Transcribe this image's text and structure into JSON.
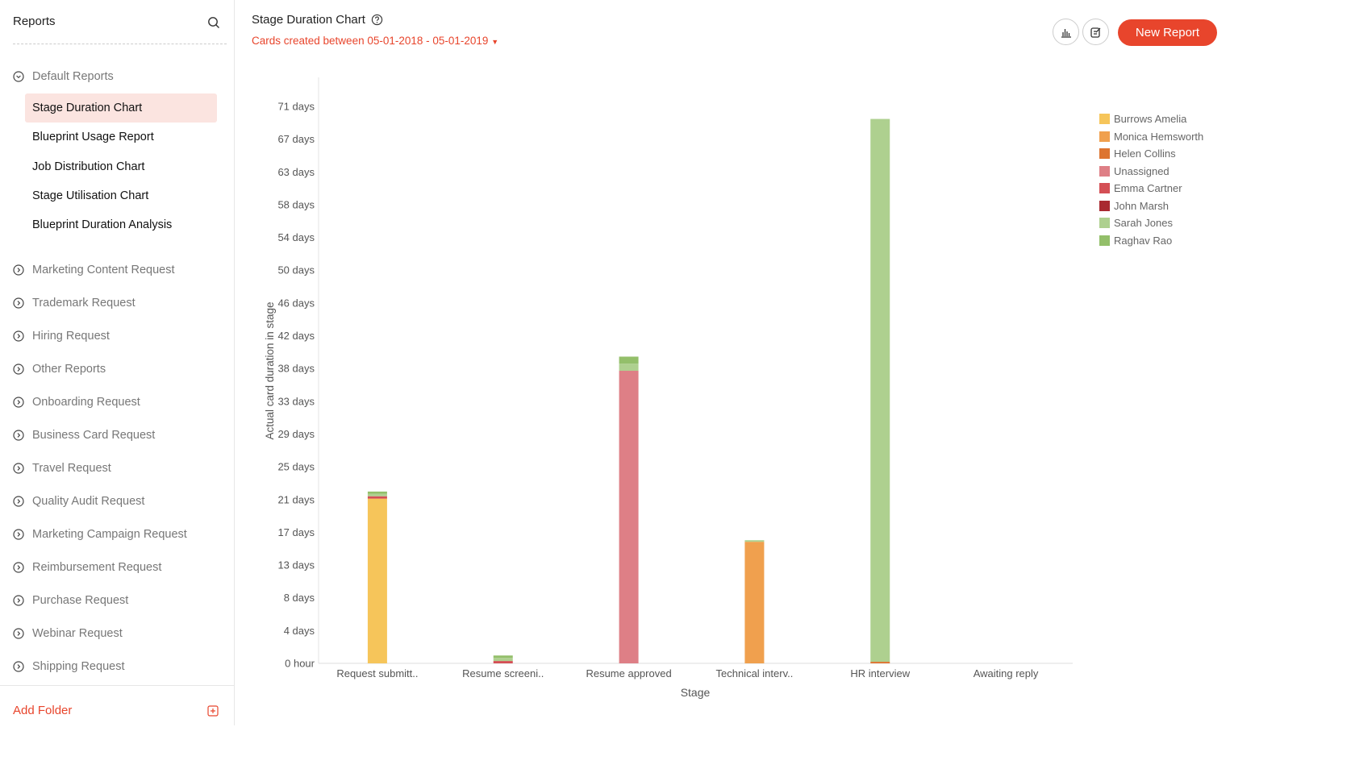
{
  "sidebar": {
    "title": "Reports",
    "default_folder": "Default Reports",
    "default_reports": [
      "Stage Duration Chart",
      "Blueprint Usage Report",
      "Job Distribution Chart",
      "Stage Utilisation Chart",
      "Blueprint Duration Analysis"
    ],
    "folders": [
      "Marketing Content Request",
      "Trademark Request",
      "Hiring Request",
      "Other Reports",
      "Onboarding Request",
      "Business Card Request",
      "Travel Request",
      "Quality Audit Request",
      "Marketing Campaign Request",
      "Reimbursement Request",
      "Purchase Request",
      "Webinar Request",
      "Shipping Request"
    ],
    "add_folder": "Add Folder"
  },
  "header": {
    "title": "Stage Duration Chart",
    "date_filter": "Cards created between 05-01-2018 - 05-01-2019",
    "new_report": "New Report"
  },
  "chart_data": {
    "type": "bar",
    "stacked": true,
    "xlabel": "Stage",
    "ylabel": "Actual card duration in stage",
    "ylim": [
      0,
      71
    ],
    "y_ticks": [
      0,
      4.18,
      8.35,
      12.53,
      16.71,
      20.88,
      25.06,
      29.24,
      33.41,
      37.59,
      41.76,
      45.94,
      50.12,
      54.29,
      58.47,
      62.65,
      66.82,
      71
    ],
    "y_tick_labels": [
      "0 hour",
      "4 days",
      "8 days",
      "13 days",
      "17 days",
      "21 days",
      "25 days",
      "29 days",
      "33 days",
      "38 days",
      "42 days",
      "46 days",
      "50 days",
      "54 days",
      "58 days",
      "63 days",
      "67 days",
      "71 days"
    ],
    "categories": [
      "Request submitt..",
      "Resume screeni..",
      "Resume approved",
      "Technical interv..",
      "HR interview",
      "Awaiting reply"
    ],
    "legend_position": "top-right",
    "series": [
      {
        "name": "Burrows Amelia",
        "color": "#f6c55a",
        "values": [
          21.0,
          0,
          0,
          0,
          0,
          0
        ]
      },
      {
        "name": "Monica Hemsworth",
        "color": "#f0a04e",
        "values": [
          0,
          0,
          0,
          15.5,
          0,
          0
        ]
      },
      {
        "name": "Helen Collins",
        "color": "#dd7430",
        "values": [
          0,
          0,
          0,
          0,
          0.2,
          0
        ]
      },
      {
        "name": "Unassigned",
        "color": "#de7f86",
        "values": [
          0,
          0,
          37.3,
          0,
          0,
          0
        ]
      },
      {
        "name": "Emma Cartner",
        "color": "#d44f55",
        "values": [
          0.3,
          0.3,
          0,
          0,
          0,
          0
        ]
      },
      {
        "name": "John Marsh",
        "color": "#a92a31",
        "values": [
          0,
          0,
          0,
          0,
          0,
          0
        ]
      },
      {
        "name": "Sarah Jones",
        "color": "#aed08f",
        "values": [
          0.3,
          0.4,
          0.9,
          0.2,
          69.2,
          0
        ]
      },
      {
        "name": "Raghav Rao",
        "color": "#93bf6a",
        "values": [
          0.3,
          0.3,
          0.9,
          0,
          0,
          0
        ]
      }
    ]
  }
}
